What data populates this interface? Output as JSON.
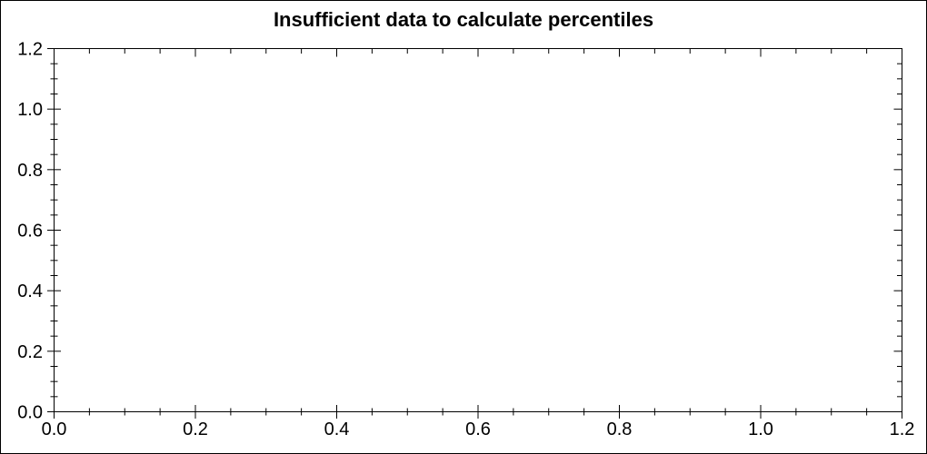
{
  "window": {
    "background": "#ffffff",
    "border_color": "#000000"
  },
  "chart_data": {
    "type": "scatter",
    "title": "Insufficient data to calculate percentiles",
    "subtitle": "",
    "xlabel": "",
    "ylabel": "",
    "xlim": [
      0.0,
      1.2
    ],
    "ylim": [
      0.0,
      1.2
    ],
    "x_ticks": [
      0.0,
      0.2,
      0.4,
      0.6,
      0.8,
      1.0,
      1.2
    ],
    "y_ticks": [
      0.0,
      0.2,
      0.4,
      0.6,
      0.8,
      1.0,
      1.2
    ],
    "x_tick_labels": [
      "0.0",
      "0.2",
      "0.4",
      "0.6",
      "0.8",
      "1.0",
      "1.2"
    ],
    "y_tick_labels": [
      "0.0",
      "0.2",
      "0.4",
      "0.6",
      "0.8",
      "1.0",
      "1.2"
    ],
    "minor_tick_step": 0.05,
    "grid": false,
    "legend_position": "none",
    "series": [],
    "axis_color": "#000000",
    "text_color": "#000000",
    "plot_background": "#ffffff"
  }
}
